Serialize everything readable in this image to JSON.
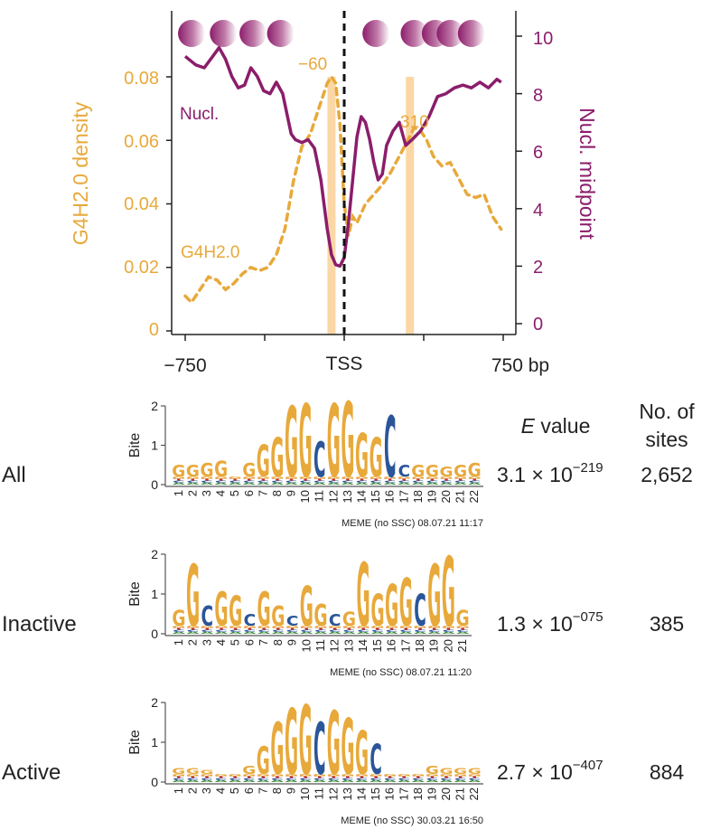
{
  "colors": {
    "orange": "#e8a93b",
    "purple": "#8b1d6b",
    "highlight": "#fbd7a6",
    "black": "#222222",
    "gblue": "#2a5599",
    "tred": "#cc3333",
    "agreen": "#3a8a3a"
  },
  "chart_data": [
    {
      "type": "line",
      "title": "",
      "xlabel": "",
      "x_ticks": {
        "left": "−750",
        "center": "TSS",
        "right": "750 bp"
      },
      "x_range_bp": [
        -800,
        800
      ],
      "y_left": {
        "label": "G4H2.0 density",
        "range": [
          0,
          0.1
        ],
        "ticks": [
          "0",
          "0.02",
          "0.04",
          "0.06",
          "0.08"
        ]
      },
      "y_right": {
        "label": "Nucl. midpoint",
        "range": [
          0,
          10.5
        ],
        "ticks": [
          "0",
          "2",
          "4",
          "6",
          "8",
          "10"
        ]
      },
      "series": [
        {
          "name": "G4H2.0",
          "axis": "left",
          "style": "dashed",
          "x": [
            -750,
            -720,
            -680,
            -640,
            -600,
            -560,
            -520,
            -480,
            -440,
            -400,
            -360,
            -320,
            -280,
            -240,
            -200,
            -160,
            -120,
            -80,
            -60,
            -40,
            -20,
            0,
            20,
            40,
            60,
            80,
            100,
            140,
            180,
            220,
            260,
            300,
            330,
            360,
            390,
            420,
            460,
            500,
            540,
            580,
            620,
            660,
            700,
            740
          ],
          "y": [
            0.011,
            0.009,
            0.013,
            0.017,
            0.016,
            0.013,
            0.015,
            0.018,
            0.02,
            0.019,
            0.02,
            0.024,
            0.032,
            0.047,
            0.058,
            0.062,
            0.07,
            0.078,
            0.08,
            0.078,
            0.065,
            0.04,
            0.03,
            0.036,
            0.034,
            0.037,
            0.04,
            0.043,
            0.046,
            0.05,
            0.055,
            0.06,
            0.064,
            0.063,
            0.06,
            0.055,
            0.052,
            0.053,
            0.048,
            0.043,
            0.042,
            0.043,
            0.036,
            0.032
          ]
        },
        {
          "name": "Nucl.",
          "axis": "right",
          "style": "solid",
          "x": [
            -750,
            -700,
            -660,
            -620,
            -590,
            -560,
            -530,
            -500,
            -470,
            -440,
            -410,
            -380,
            -350,
            -320,
            -290,
            -270,
            -250,
            -230,
            -200,
            -170,
            -140,
            -110,
            -80,
            -60,
            -40,
            -20,
            0,
            20,
            40,
            60,
            80,
            100,
            120,
            140,
            160,
            180,
            200,
            230,
            260,
            290,
            320,
            360,
            400,
            440,
            480,
            520,
            560,
            600,
            640,
            680,
            720,
            740
          ],
          "y": [
            9.3,
            9.0,
            8.9,
            9.3,
            9.6,
            9.2,
            8.6,
            8.2,
            8.3,
            8.9,
            8.6,
            8.1,
            8.0,
            8.4,
            8.0,
            7.3,
            6.6,
            6.4,
            6.3,
            6.4,
            6.1,
            5.0,
            3.3,
            2.4,
            2.05,
            2.0,
            2.3,
            3.5,
            5.0,
            6.5,
            7.2,
            7.0,
            6.4,
            5.6,
            5.0,
            5.2,
            6.2,
            6.7,
            7.0,
            6.2,
            6.4,
            6.7,
            7.2,
            7.9,
            8.0,
            8.2,
            8.3,
            8.2,
            8.4,
            8.2,
            8.5,
            8.4
          ]
        }
      ],
      "annotations": {
        "peak_left": "−60",
        "peak_right": "310",
        "series_label_g4": "G4H2.0",
        "series_label_nucl": "Nucl."
      },
      "highlight_bands_bp": [
        -60,
        310
      ],
      "tss_line_bp": 0,
      "nucleosome_positions_bp": [
        -720,
        -570,
        -430,
        -300,
        150,
        330,
        430,
        500,
        600
      ]
    },
    {
      "type": "sequence-logo",
      "row_label": "All",
      "ylabel": "Bite",
      "y_ticks": [
        "0",
        "1",
        "2"
      ],
      "positions": [
        "1",
        "2",
        "3",
        "4",
        "5",
        "6",
        "7",
        "8",
        "9",
        "10",
        "11",
        "12",
        "13",
        "14",
        "15",
        "16",
        "17",
        "18",
        "19",
        "20",
        "21",
        "22"
      ],
      "top_letters": [
        "G",
        "G",
        "G",
        "G",
        "",
        "G",
        "G",
        "G",
        "G",
        "G",
        "C",
        "G",
        "G",
        "G",
        "G",
        "C",
        "C",
        "G",
        "G",
        "G",
        "G",
        "G"
      ],
      "top_heights": [
        0.3,
        0.3,
        0.35,
        0.4,
        0.0,
        0.35,
        0.8,
        1.0,
        1.8,
        1.85,
        0.9,
        1.85,
        1.9,
        1.1,
        1.0,
        1.55,
        0.3,
        0.3,
        0.3,
        0.25,
        0.3,
        0.35
      ],
      "e_value": "3.1 × 10",
      "e_value_exp": "−219",
      "sites": "2,652",
      "footer": "MEME (no SSC) 08.07.21 11:17"
    },
    {
      "type": "sequence-logo",
      "row_label": "Inactive",
      "ylabel": "Bite",
      "y_ticks": [
        "0",
        "1",
        "2"
      ],
      "positions": [
        "1",
        "2",
        "3",
        "4",
        "5",
        "6",
        "7",
        "8",
        "9",
        "10",
        "11",
        "12",
        "13",
        "14",
        "15",
        "16",
        "17",
        "18",
        "19",
        "20",
        "21"
      ],
      "top_letters": [
        "G",
        "G",
        "C",
        "G",
        "G",
        "C",
        "G",
        "G",
        "C",
        "G",
        "G",
        "C",
        "G",
        "G",
        "G",
        "G",
        "G",
        "C",
        "G",
        "G",
        "G"
      ],
      "top_heights": [
        0.4,
        1.55,
        0.5,
        0.85,
        0.75,
        0.3,
        0.85,
        0.5,
        0.25,
        1.0,
        0.55,
        0.3,
        0.35,
        1.6,
        0.8,
        1.05,
        1.2,
        0.8,
        1.55,
        1.75,
        0.4
      ],
      "e_value": "1.3 × 10",
      "e_value_exp": "−075",
      "sites": "385",
      "footer": "MEME (no SSC) 08.07.21 11:20"
    },
    {
      "type": "sequence-logo",
      "row_label": "Active",
      "ylabel": "Bite",
      "y_ticks": [
        "0",
        "1",
        "2"
      ],
      "positions": [
        "1",
        "2",
        "3",
        "4",
        "5",
        "6",
        "7",
        "8",
        "9",
        "10",
        "11",
        "12",
        "13",
        "14",
        "15",
        "16",
        "17",
        "18",
        "19",
        "20",
        "21",
        "22"
      ],
      "top_letters": [
        "G",
        "G",
        "G",
        "",
        "",
        "G",
        "G",
        "G",
        "G",
        "G",
        "C",
        "G",
        "G",
        "G",
        "C",
        "",
        "",
        "",
        "G",
        "G",
        "G",
        "G"
      ],
      "top_heights": [
        0.15,
        0.15,
        0.1,
        0.0,
        0.0,
        0.2,
        0.7,
        1.3,
        1.65,
        1.75,
        1.3,
        1.6,
        1.4,
        1.1,
        0.75,
        0.0,
        0.0,
        0.0,
        0.2,
        0.15,
        0.15,
        0.15
      ],
      "e_value": "2.7 × 10",
      "e_value_exp": "−407",
      "sites": "884",
      "footer": "MEME (no SSC) 30.03.21 16:50"
    }
  ],
  "column_headers": {
    "e_value_italic": "E",
    "e_value_rest": " value",
    "sites_line1": "No. of",
    "sites_line2": "sites"
  }
}
